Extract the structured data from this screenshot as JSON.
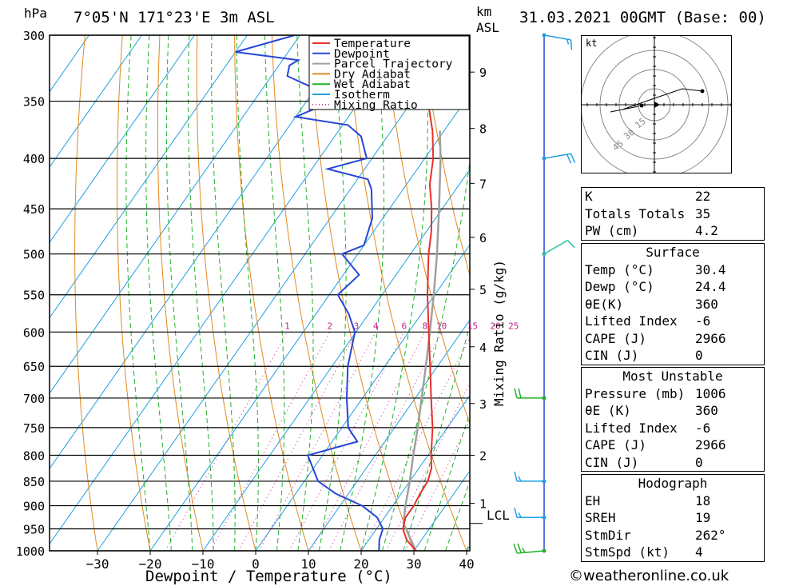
{
  "header": {
    "location": "7°05'N 171°23'E 3m ASL",
    "datetime": "31.03.2021 00GMT (Base: 00)",
    "pressure_unit": "hPa",
    "height_unit_top": "km",
    "height_unit_bottom": "ASL"
  },
  "axes": {
    "xlabel": "Dewpoint / Temperature (°C)",
    "mixing_label": "Mixing Ratio (g/kg)",
    "lcl_label": "LCL",
    "footer": "©weatheronline.co.uk"
  },
  "legend": {
    "items": [
      {
        "label": "Temperature",
        "color": "#e8302a",
        "style": "solid"
      },
      {
        "label": "Dewpoint",
        "color": "#2646d8",
        "style": "solid"
      },
      {
        "label": "Parcel Trajectory",
        "color": "#a0a0a0",
        "style": "solid"
      },
      {
        "label": "Dry Adiabat",
        "color": "#e08a20",
        "style": "solid"
      },
      {
        "label": "Wet Adiabat",
        "color": "#22b02a",
        "style": "solid"
      },
      {
        "label": "Isotherm",
        "color": "#20a0e0",
        "style": "solid"
      },
      {
        "label": "Mixing Ratio",
        "color": "#c0208a",
        "style": "dotted"
      }
    ]
  },
  "chart_data": {
    "type": "line",
    "pressure_levels": [
      300,
      350,
      400,
      450,
      500,
      550,
      600,
      650,
      700,
      750,
      800,
      850,
      900,
      950,
      1000
    ],
    "temp_ticks": [
      -30,
      -20,
      -10,
      0,
      10,
      20,
      30,
      40
    ],
    "height_ticks_km": [
      {
        "label": "9",
        "p": 327
      },
      {
        "label": "8",
        "p": 373
      },
      {
        "label": "7",
        "p": 424
      },
      {
        "label": "6",
        "p": 481
      },
      {
        "label": "5",
        "p": 543
      },
      {
        "label": "4",
        "p": 621
      },
      {
        "label": "3",
        "p": 709
      },
      {
        "label": "2",
        "p": 800
      },
      {
        "label": "1",
        "p": 895
      }
    ],
    "lcl_pressure": 938,
    "mixing_ratio_labels": [
      "1",
      "2",
      "3",
      "4",
      "6",
      "8",
      "10",
      "15",
      "20",
      "25"
    ],
    "mixing_ratio_values": [
      1,
      2,
      3,
      4,
      6,
      8,
      10,
      15,
      20,
      25
    ],
    "temperature": [
      [
        1000,
        30.4
      ],
      [
        975,
        27.2
      ],
      [
        950,
        25.0
      ],
      [
        925,
        24.0
      ],
      [
        900,
        24.0
      ],
      [
        875,
        23.6
      ],
      [
        850,
        23.4
      ],
      [
        825,
        22.4
      ],
      [
        800,
        20.6
      ],
      [
        750,
        17.2
      ],
      [
        700,
        13.0
      ],
      [
        650,
        8.6
      ],
      [
        600,
        3.8
      ],
      [
        550,
        -1.4
      ],
      [
        500,
        -6.6
      ],
      [
        475,
        -9.0
      ],
      [
        450,
        -12.0
      ],
      [
        425,
        -15.6
      ],
      [
        400,
        -18.4
      ],
      [
        375,
        -22.2
      ],
      [
        350,
        -27.0
      ],
      [
        325,
        -33.2
      ],
      [
        310,
        -37.0
      ],
      [
        300,
        -39.8
      ]
    ],
    "dewpoint": [
      [
        1000,
        23.4
      ],
      [
        975,
        22.0
      ],
      [
        950,
        21.2
      ],
      [
        925,
        18.6
      ],
      [
        900,
        14.2
      ],
      [
        875,
        7.6
      ],
      [
        850,
        2.6
      ],
      [
        800,
        -2.8
      ],
      [
        775,
        4.8
      ],
      [
        750,
        1.2
      ],
      [
        700,
        -3.0
      ],
      [
        650,
        -7.0
      ],
      [
        600,
        -10.2
      ],
      [
        575,
        -13.8
      ],
      [
        550,
        -18.4
      ],
      [
        525,
        -17.0
      ],
      [
        500,
        -23.0
      ],
      [
        490,
        -20.0
      ],
      [
        460,
        -22.0
      ],
      [
        430,
        -26.0
      ],
      [
        420,
        -28.0
      ],
      [
        410,
        -37.0
      ],
      [
        400,
        -31.0
      ],
      [
        380,
        -35.0
      ],
      [
        370,
        -39.0
      ],
      [
        363,
        -50.0
      ],
      [
        350,
        -45.0
      ],
      [
        340,
        -50.0
      ],
      [
        330,
        -57.0
      ],
      [
        322,
        -58.0
      ],
      [
        318,
        -57.0
      ],
      [
        312,
        -70.0
      ],
      [
        300,
        -61.0
      ]
    ],
    "parcel": [
      [
        1000,
        30.4
      ],
      [
        938,
        24.4
      ],
      [
        900,
        22.4
      ],
      [
        850,
        20.0
      ],
      [
        800,
        17.2
      ],
      [
        750,
        14.4
      ],
      [
        700,
        11.2
      ],
      [
        650,
        7.8
      ],
      [
        600,
        4.0
      ],
      [
        550,
        -0.2
      ],
      [
        500,
        -5.0
      ],
      [
        450,
        -10.6
      ],
      [
        400,
        -17.0
      ],
      [
        375,
        -20.8
      ]
    ],
    "wind_barbs": [
      {
        "p": 300,
        "dir": 100,
        "spd": 15
      },
      {
        "p": 400,
        "dir": 80,
        "spd": 20
      },
      {
        "p": 500,
        "dir": 60,
        "spd": 10
      },
      {
        "p": 700,
        "dir": 270,
        "spd": 20
      },
      {
        "p": 850,
        "dir": 270,
        "spd": 15
      },
      {
        "p": 925,
        "dir": 270,
        "spd": 15
      },
      {
        "p": 1000,
        "dir": 265,
        "spd": 25
      }
    ],
    "xlim": [
      -40,
      40
    ],
    "ylim": [
      1000,
      300
    ]
  },
  "hodograph": {
    "unit": "kt",
    "ring_labels": [
      "15",
      "30",
      "45"
    ]
  },
  "indices": {
    "general": [
      {
        "label": "K",
        "value": "22"
      },
      {
        "label": "Totals Totals",
        "value": "35"
      },
      {
        "label": "PW (cm)",
        "value": "4.2"
      }
    ],
    "surface_title": "Surface",
    "surface": [
      {
        "label": "Temp (°C)",
        "value": "30.4"
      },
      {
        "label": "Dewp (°C)",
        "value": "24.4"
      },
      {
        "label": "θE(K)",
        "value": "360"
      },
      {
        "label": "Lifted Index",
        "value": "-6"
      },
      {
        "label": "CAPE (J)",
        "value": "2966"
      },
      {
        "label": "CIN (J)",
        "value": "0"
      }
    ],
    "mu_title": "Most Unstable",
    "mu": [
      {
        "label": "Pressure (mb)",
        "value": "1006"
      },
      {
        "label": "θE (K)",
        "value": "360"
      },
      {
        "label": "Lifted Index",
        "value": "-6"
      },
      {
        "label": "CAPE (J)",
        "value": "2966"
      },
      {
        "label": "CIN (J)",
        "value": "0"
      }
    ],
    "hodo_title": "Hodograph",
    "hodo": [
      {
        "label": "EH",
        "value": "18"
      },
      {
        "label": "SREH",
        "value": "19"
      },
      {
        "label": "StmDir",
        "value": "262°"
      },
      {
        "label": "StmSpd (kt)",
        "value": "4"
      }
    ]
  }
}
